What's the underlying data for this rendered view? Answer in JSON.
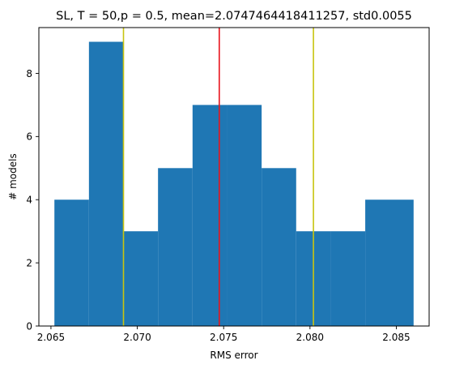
{
  "chart_data": {
    "type": "bar",
    "title": "SL, T = 50,p = 0.5, mean=2.0747464418411257, std0.0055",
    "xlabel": "RMS error",
    "ylabel": "# models",
    "xlim": [
      2.0643,
      2.0869
    ],
    "ylim": [
      0,
      9.45
    ],
    "grid": false,
    "legend": "none",
    "bin_edges": [
      2.0652,
      2.0672,
      2.0692,
      2.0712,
      2.0732,
      2.0752,
      2.0772,
      2.0792,
      2.0812,
      2.0832,
      2.086
    ],
    "values": [
      4,
      9,
      3,
      5,
      7,
      7,
      5,
      3,
      3,
      4
    ],
    "x_ticks": [
      2.065,
      2.07,
      2.075,
      2.08,
      2.085
    ],
    "x_tick_labels": [
      "2.065",
      "2.070",
      "2.075",
      "2.080",
      "2.085"
    ],
    "y_ticks": [
      0,
      2,
      4,
      6,
      8
    ],
    "y_tick_labels": [
      "0",
      "2",
      "4",
      "6",
      "8"
    ],
    "vlines": [
      {
        "x": 2.0747464418411257,
        "color": "#e8141c"
      },
      {
        "x": 2.0692,
        "color": "#c8c410"
      },
      {
        "x": 2.0802,
        "color": "#c8c410"
      }
    ],
    "bar_color": "#1f77b4"
  }
}
